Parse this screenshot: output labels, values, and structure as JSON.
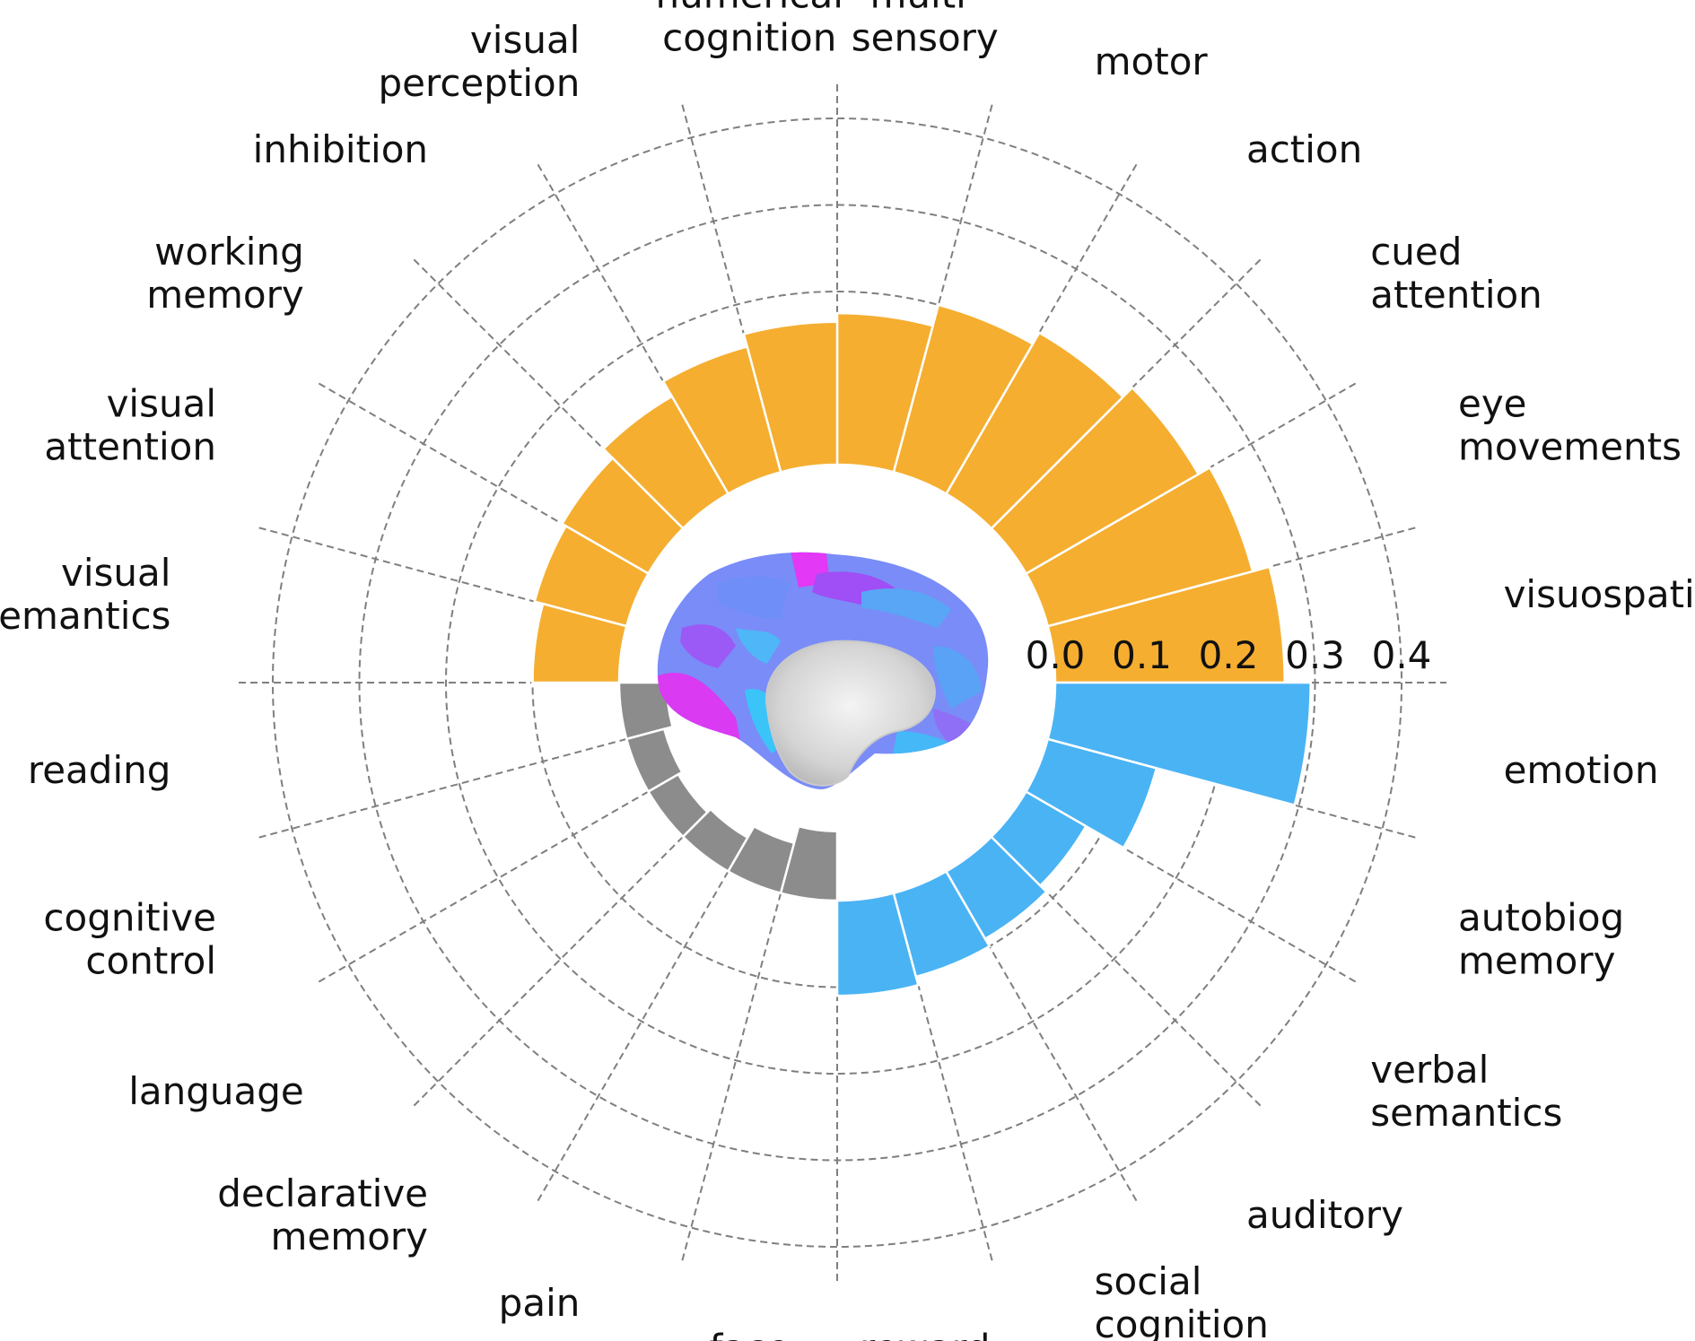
{
  "chart_data": {
    "type": "bar",
    "subtype": "polar",
    "categories": [
      "visuospatial",
      "eye\nmovements",
      "cued\nattention",
      "action",
      "motor",
      "multi-\nsensory",
      "numerical\ncognition",
      "visual\nperception",
      "inhibition",
      "working\nmemory",
      "visual\nattention",
      "visual\nsemantics",
      "reading",
      "cognitive\ncontrol",
      "language",
      "declarative\nmemory",
      "pain",
      "face",
      "reward",
      "social\ncognition",
      "auditory",
      "verbal\nsemantics",
      "autobiog\nmemory",
      "emotion"
    ],
    "values": [
      0.265,
      0.245,
      0.23,
      0.215,
      0.2,
      0.175,
      0.165,
      0.15,
      0.13,
      0.115,
      0.11,
      0.1,
      -0.055,
      -0.045,
      -0.04,
      -0.045,
      -0.06,
      -0.08,
      0.11,
      0.1,
      0.09,
      0.08,
      0.13,
      0.295
    ],
    "bar_colors": [
      "#f5ae30",
      "#f5ae30",
      "#f5ae30",
      "#f5ae30",
      "#f5ae30",
      "#f5ae30",
      "#f5ae30",
      "#f5ae30",
      "#f5ae30",
      "#f5ae30",
      "#f5ae30",
      "#f5ae30",
      "#8c8c8c",
      "#8c8c8c",
      "#8c8c8c",
      "#8c8c8c",
      "#8c8c8c",
      "#8c8c8c",
      "#4ab3f4",
      "#4ab3f4",
      "#4ab3f4",
      "#4ab3f4",
      "#4ab3f4",
      "#4ab3f4"
    ],
    "radial_ticks": [
      "0.0",
      "0.1",
      "0.2",
      "0.3",
      "0.4"
    ],
    "rlim": [
      0.0,
      0.4
    ],
    "grid": true,
    "grid_style": "dashed",
    "center_image": "brain-medial-surface",
    "colors": {
      "positive_upper": "#f5ae30",
      "positive_lower": "#4ab3f4",
      "negative": "#8c8c8c",
      "grid": "#7f7f7f"
    }
  }
}
